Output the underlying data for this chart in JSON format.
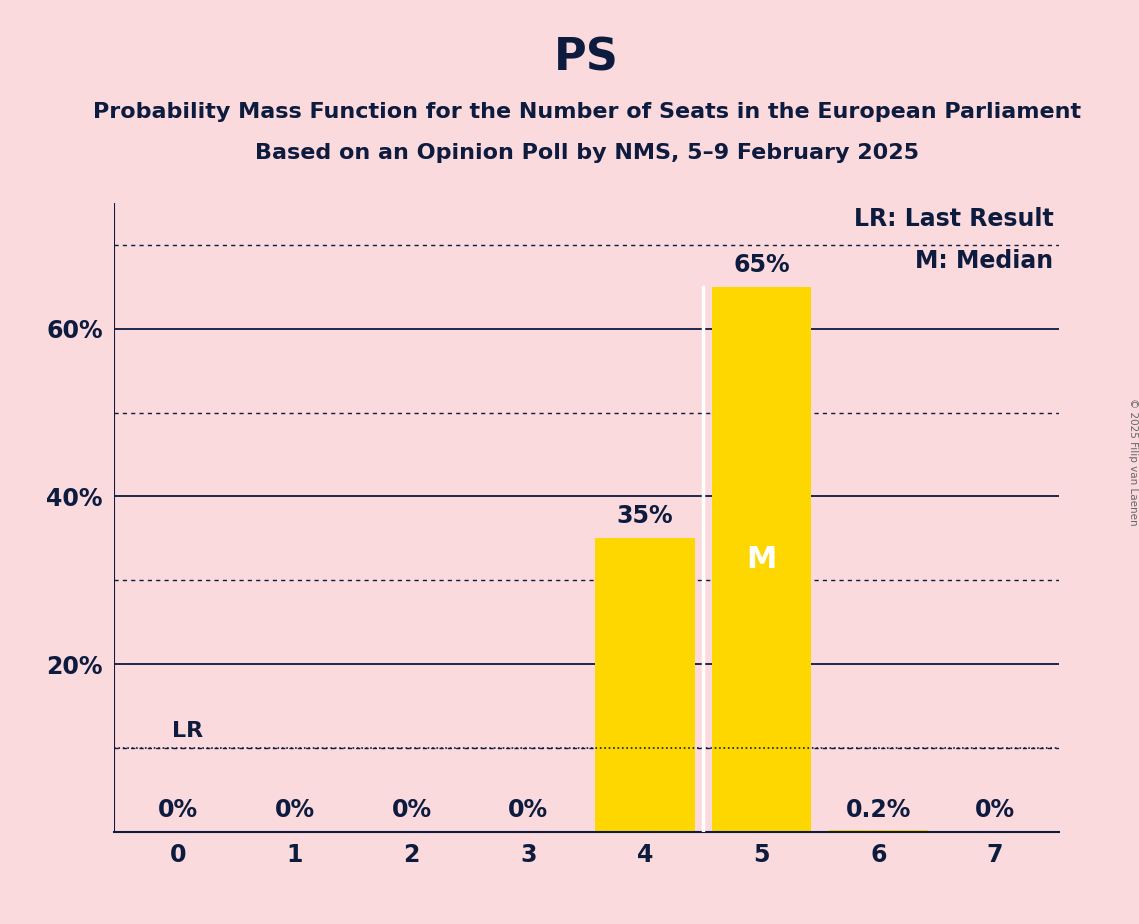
{
  "title": "PS",
  "subtitle_line1": "Probability Mass Function for the Number of Seats in the European Parliament",
  "subtitle_line2": "Based on an Opinion Poll by NMS, 5–9 February 2025",
  "copyright_text": "© 2025 Filip van Laenen",
  "categories": [
    0,
    1,
    2,
    3,
    4,
    5,
    6,
    7
  ],
  "values": [
    0.0,
    0.0,
    0.0,
    0.0,
    0.35,
    0.65,
    0.002,
    0.0
  ],
  "bar_labels": [
    "0%",
    "0%",
    "0%",
    "0%",
    "35%",
    "65%",
    "0.2%",
    "0%"
  ],
  "bar_color": "#FFD700",
  "background_color": "#FADADD",
  "text_color": "#0d1b3e",
  "median_seat": 5,
  "lr_value": 0.1,
  "legend_lr": "LR: Last Result",
  "legend_m": "M: Median",
  "ylim": [
    0,
    0.75
  ],
  "solid_yticks": [
    0.0,
    0.2,
    0.4,
    0.6
  ],
  "dotted_yticks": [
    0.1,
    0.3,
    0.5,
    0.7
  ],
  "title_fontsize": 32,
  "subtitle_fontsize": 16,
  "tick_fontsize": 17,
  "legend_fontsize": 17,
  "bar_label_fontsize": 17,
  "median_label_fontsize": 22,
  "lr_label_fontsize": 16
}
